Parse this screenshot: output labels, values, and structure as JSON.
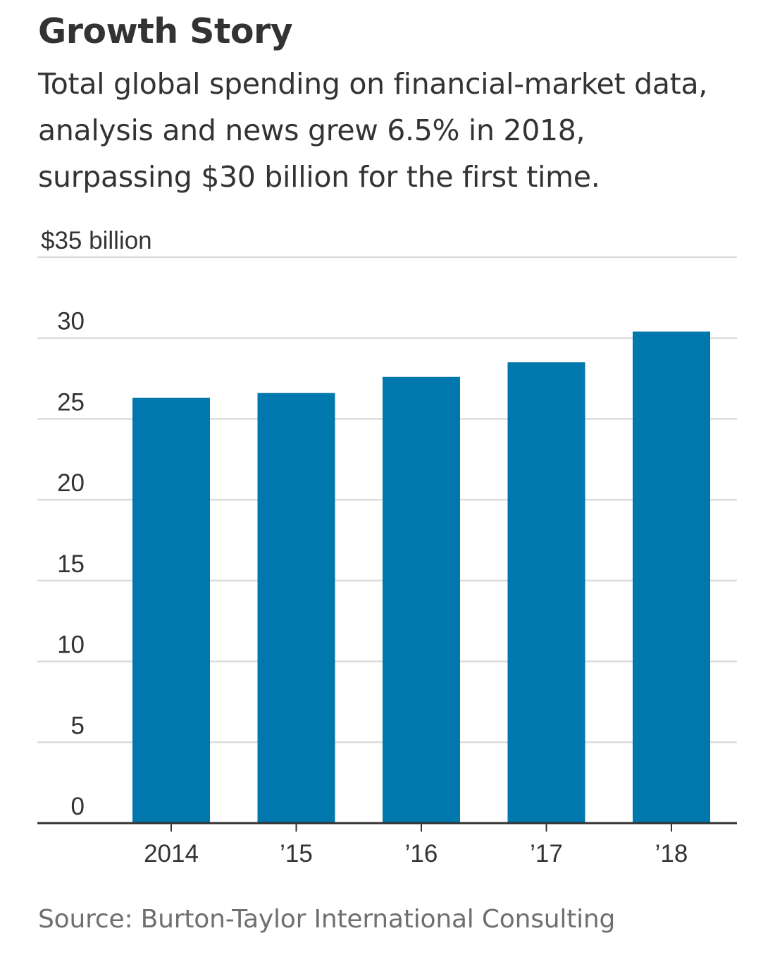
{
  "header": {
    "title": "Growth Story",
    "subtitle": "Total global spending on financial-market data, analysis and news grew 6.5% in 2018, surpassing $30 billion for the first time."
  },
  "footer": {
    "source": "Source: Burton-Taylor International Consulting"
  },
  "colors": {
    "bar": "#0077ad",
    "grid": "#dcdcdc",
    "axis": "#333333",
    "text": "#333333",
    "source_text": "#6f6f6f"
  },
  "chart_data": {
    "type": "bar",
    "categories": [
      "2014",
      "’15",
      "’16",
      "’17",
      "’18"
    ],
    "values": [
      26.3,
      26.6,
      27.6,
      28.5,
      30.4
    ],
    "ylim": [
      0,
      35
    ],
    "yticks": [
      0,
      5,
      10,
      15,
      20,
      25,
      30,
      35
    ],
    "ytick_labels": [
      "0",
      "5",
      "10",
      "15",
      "20",
      "25",
      "30",
      "$35 billion"
    ],
    "grid": true,
    "legend": "none",
    "xlabel": "",
    "ylabel": ""
  }
}
